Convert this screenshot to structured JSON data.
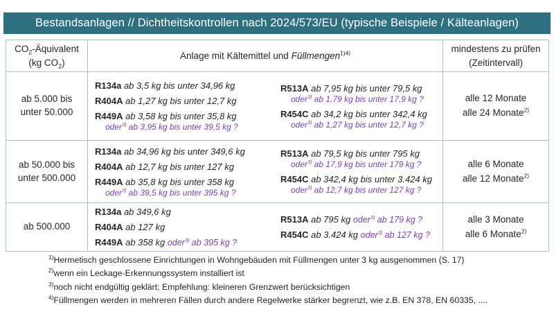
{
  "title": "Bestandsanlagen // Dichtheitskontrollen nach 2024/573/EU (typische Beispiele / Kälteanlagen)",
  "colors": {
    "title_bar_bg": "#2E6F80",
    "title_text": "#FFFFFF",
    "table_border": "#A6C3D1",
    "body_text": "#262626",
    "alt_purple": "#7B3FA8"
  },
  "table": {
    "header": {
      "co2_pre": "CO",
      "co2_sub": "2",
      "co2_post": "-Äquivalent",
      "kg_pre": "(kg CO",
      "kg_sub": "2",
      "kg_post": ")",
      "anlage_pre": "Anlage mit Kältemittel und",
      "anlage_italic": "Füllmengen",
      "anlage_sup": "1)4)",
      "pruefen_line1": "mindestens zu prüfen",
      "pruefen_line2": "(Zeitintervall)"
    },
    "rows": [
      {
        "co2_lines": [
          "ab 5.000 bis",
          "unter 50.000"
        ],
        "left": [
          {
            "name": "R134a",
            "range": "ab 3,5 kg bis unter 34,96 kg"
          },
          {
            "name": "R404A",
            "range": "ab 1,27 kg bis unter 12,7 kg"
          },
          {
            "name": "R449A",
            "range": "ab 3,58 kg bis unter 35,8 kg",
            "alt_word": "oder",
            "alt_sup": "3)",
            "alt_text": "ab 3,95 kg bis unter 39,5 kg ?"
          }
        ],
        "right": [
          {
            "name": "R513A",
            "range": "ab 7,95 kg bis unter 79,5 kg",
            "alt_word": "oder",
            "alt_sup": "3)",
            "alt_text": "ab 1,79 kg bis unter 17,9 kg ?"
          },
          {
            "name": "R454C",
            "range": "ab 34,2 kg bis unter 342,4 kg",
            "alt_word": "oder",
            "alt_sup": "3)",
            "alt_text": "ab 1,27 kg bis unter 12,7 kg ?"
          }
        ],
        "intervals": [
          "alle 12 Monate",
          "alle 24 Monate"
        ],
        "interval_sup": "2)"
      },
      {
        "co2_lines": [
          "ab 50.000 bis",
          "unter 500.000"
        ],
        "left": [
          {
            "name": "R134a",
            "range": "ab 34,96 kg bis unter 349,6 kg"
          },
          {
            "name": "R404A",
            "range": "ab 12,7 kg bis unter 127 kg"
          },
          {
            "name": "R449A",
            "range": "ab 35,8 kg bis unter 358 kg",
            "alt_word": "oder",
            "alt_sup": "3)",
            "alt_text": "ab 39,5 kg bis unter 395 kg ?"
          }
        ],
        "right": [
          {
            "name": "R513A",
            "range": "ab 79,5 kg bis unter 795 kg",
            "alt_word": "oder",
            "alt_sup": "3)",
            "alt_text": "ab 17,9 kg bis unter 179 kg ?"
          },
          {
            "name": "R454C",
            "range": "ab 342,4 kg bis unter 3.424 kg",
            "alt_word": "oder",
            "alt_sup": "3)",
            "alt_text": "ab 12,7 kg bis unter 127 kg ?"
          }
        ],
        "intervals": [
          "alle 6 Monate",
          "alle 12 Monate"
        ],
        "interval_sup": "2)"
      },
      {
        "co2_lines": [
          "ab 500.000"
        ],
        "left": [
          {
            "name": "R134a",
            "range": "ab 349,6 kg"
          },
          {
            "name": "R404A",
            "range": "ab 127 kg"
          },
          {
            "name": "R449A",
            "range": "ab 358 kg",
            "alt_word": "oder",
            "alt_sup": "3)",
            "alt_text": "ab 395 kg ?"
          }
        ],
        "right": [
          {
            "name": "R513A",
            "range": "ab 795 kg",
            "alt_word": "oder",
            "alt_sup": "3)",
            "alt_text": "ab 179 kg ?"
          },
          {
            "name": "R454C",
            "range": "ab 3.424 kg",
            "alt_word": "oder",
            "alt_sup": "3)",
            "alt_text": "ab 127 kg ?"
          }
        ],
        "intervals": [
          "alle 3 Monate",
          "alle 6 Monate"
        ],
        "interval_sup": "2)"
      }
    ]
  },
  "footnotes": [
    {
      "sup": "1)",
      "text": "Hermetisch geschlossene Einrichtungen in Wohngebäuden mit Füllmengen unter 3 kg ausgenommen (S. 17)"
    },
    {
      "sup": "2)",
      "text": "wenn ein Leckage-Erkennungssystem installiert ist"
    },
    {
      "sup": "3)",
      "text": "noch nicht endgültig geklärt; Empfehlung: kleineren Grenzwert berücksichtigen"
    },
    {
      "sup": "4)",
      "text": "Füllmengen werden in mehreren Fällen durch andere Regelwerke stärker begrenzt, wie z.B. EN 378, EN 60335, ...."
    }
  ]
}
